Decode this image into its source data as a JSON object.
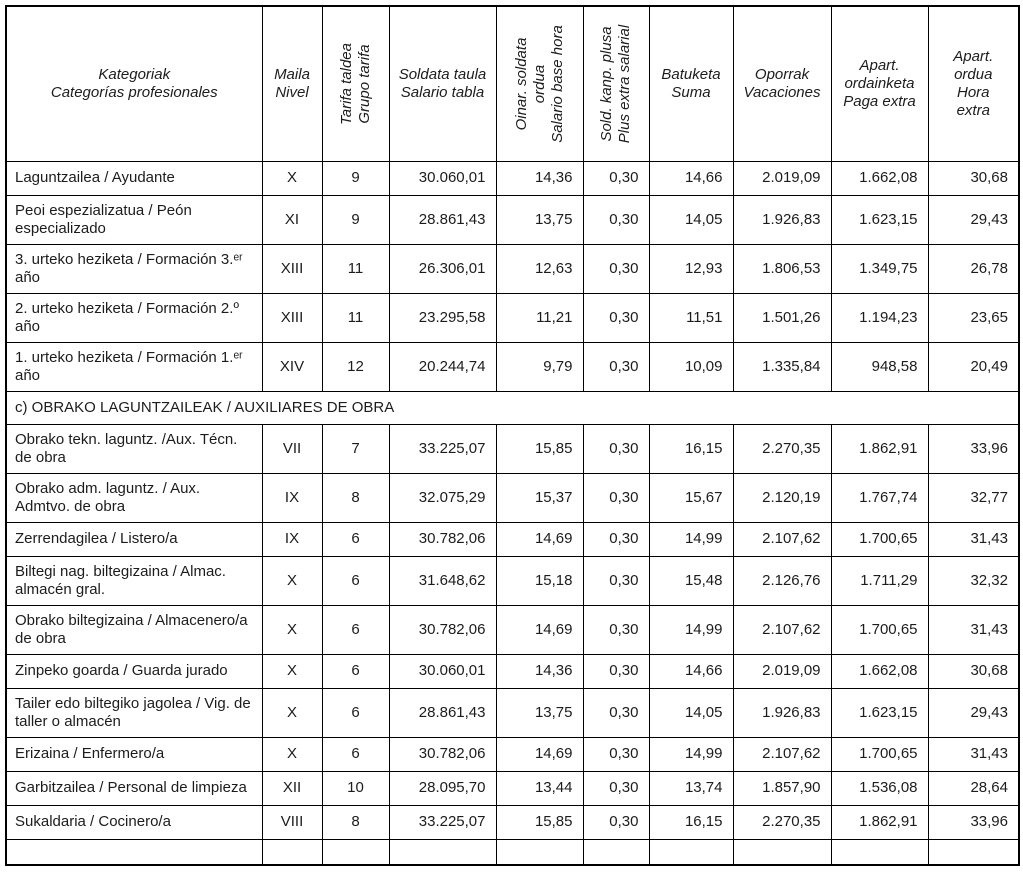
{
  "table": {
    "columns": [
      {
        "key": "category",
        "name": "col-header-category",
        "rotated": false,
        "lines": [
          "Kategoriak",
          "Categorías profesionales"
        ]
      },
      {
        "key": "level",
        "name": "col-header-level",
        "rotated": false,
        "lines": [
          "Maila",
          "Nivel"
        ]
      },
      {
        "key": "tariff_group",
        "name": "col-header-tariff-group",
        "rotated": true,
        "lines": [
          "Tarifa taldea",
          "Grupo tarifa"
        ]
      },
      {
        "key": "salary_table",
        "name": "col-header-salary-table",
        "rotated": false,
        "lines": [
          "Soldata taula",
          "Salario tabla"
        ]
      },
      {
        "key": "base_hour_salary",
        "name": "col-header-base-hour",
        "rotated": true,
        "lines": [
          "Oinar. soldata",
          "ordua",
          "Salario base hora"
        ]
      },
      {
        "key": "extra_salary_plus",
        "name": "col-header-salary-plus",
        "rotated": true,
        "lines": [
          "Sold. kanp. plusa",
          "Plus extra salarial"
        ]
      },
      {
        "key": "sum",
        "name": "col-header-sum",
        "rotated": false,
        "lines": [
          "Batuketa",
          "Suma"
        ]
      },
      {
        "key": "vacations",
        "name": "col-header-vacations",
        "rotated": false,
        "lines": [
          "Oporrak",
          "Vacaciones"
        ]
      },
      {
        "key": "extra_payment",
        "name": "col-header-extra-pay",
        "rotated": false,
        "lines": [
          "Apart.",
          "ordainketa",
          "Paga extra"
        ]
      },
      {
        "key": "extra_hour",
        "name": "col-header-extra-hour",
        "rotated": false,
        "lines": [
          "Apart.",
          "ordua",
          "Hora",
          "extra"
        ]
      }
    ],
    "rows": [
      {
        "type": "data",
        "cells": [
          "Laguntzailea / Ayudante",
          "X",
          "9",
          "30.060,01",
          "14,36",
          "0,30",
          "14,66",
          "2.019,09",
          "1.662,08",
          "30,68"
        ]
      },
      {
        "type": "data",
        "cells": [
          "Peoi espezializatua / Peón especializado",
          "XI",
          "9",
          "28.861,43",
          "13,75",
          "0,30",
          "14,05",
          "1.926,83",
          "1.623,15",
          "29,43"
        ]
      },
      {
        "type": "data",
        "cells": [
          "3. urteko heziketa / Formación 3.ᵉʳ año",
          "XIII",
          "11",
          "26.306,01",
          "12,63",
          "0,30",
          "12,93",
          "1.806,53",
          "1.349,75",
          "26,78"
        ]
      },
      {
        "type": "data",
        "cells": [
          "2. urteko heziketa / Formación 2.º año",
          "XIII",
          "11",
          "23.295,58",
          "11,21",
          "0,30",
          "11,51",
          "1.501,26",
          "1.194,23",
          "23,65"
        ]
      },
      {
        "type": "data",
        "cells": [
          "1. urteko heziketa / Formación 1.ᵉʳ año",
          "XIV",
          "12",
          "20.244,74",
          "9,79",
          "0,30",
          "10,09",
          "1.335,84",
          "948,58",
          "20,49"
        ]
      },
      {
        "type": "section",
        "label": "c) OBRAKO LAGUNTZAILEAK / AUXILIARES DE OBRA"
      },
      {
        "type": "data",
        "cells": [
          "Obrako tekn. laguntz. /Aux. Técn. de obra",
          "VII",
          "7",
          "33.225,07",
          "15,85",
          "0,30",
          "16,15",
          "2.270,35",
          "1.862,91",
          "33,96"
        ]
      },
      {
        "type": "data",
        "cells": [
          "Obrako adm. laguntz. / Aux. Admtvo. de obra",
          "IX",
          "8",
          "32.075,29",
          "15,37",
          "0,30",
          "15,67",
          "2.120,19",
          "1.767,74",
          "32,77"
        ]
      },
      {
        "type": "data",
        "cells": [
          "Zerrendagilea / Listero/a",
          "IX",
          "6",
          "30.782,06",
          "14,69",
          "0,30",
          "14,99",
          "2.107,62",
          "1.700,65",
          "31,43"
        ]
      },
      {
        "type": "data",
        "cells": [
          "Biltegi nag. biltegizaina / Almac. almacén gral.",
          "X",
          "6",
          "31.648,62",
          "15,18",
          "0,30",
          "15,48",
          "2.126,76",
          "1.711,29",
          "32,32"
        ]
      },
      {
        "type": "data",
        "cells": [
          "Obrako biltegizaina / Almacenero/a de obra",
          "X",
          "6",
          "30.782,06",
          "14,69",
          "0,30",
          "14,99",
          "2.107,62",
          "1.700,65",
          "31,43"
        ]
      },
      {
        "type": "data",
        "cells": [
          "Zinpeko goarda / Guarda jurado",
          "X",
          "6",
          "30.060,01",
          "14,36",
          "0,30",
          "14,66",
          "2.019,09",
          "1.662,08",
          "30,68"
        ]
      },
      {
        "type": "data",
        "cells": [
          "Tailer edo biltegiko jagolea / Vig. de taller o almacén",
          "X",
          "6",
          "28.861,43",
          "13,75",
          "0,30",
          "14,05",
          "1.926,83",
          "1.623,15",
          "29,43"
        ]
      },
      {
        "type": "data",
        "cells": [
          "Erizaina / Enfermero/a",
          "X",
          "6",
          "30.782,06",
          "14,69",
          "0,30",
          "14,99",
          "2.107,62",
          "1.700,65",
          "31,43"
        ]
      },
      {
        "type": "data",
        "cells": [
          "Garbitzailea / Personal de limpieza",
          "XII",
          "10",
          "28.095,70",
          "13,44",
          "0,30",
          "13,74",
          "1.857,90",
          "1.536,08",
          "28,64"
        ]
      },
      {
        "type": "data",
        "cells": [
          "Sukaldaria / Cocinero/a",
          "VIII",
          "8",
          "33.225,07",
          "15,85",
          "0,30",
          "16,15",
          "2.270,35",
          "1.862,91",
          "33,96"
        ]
      }
    ],
    "cell_names": [
      "cell-category",
      "cell-level",
      "cell-tariff-group",
      "cell-salary-table",
      "cell-base-hour-salary",
      "cell-salary-plus",
      "cell-sum",
      "cell-vacations",
      "cell-extra-pay",
      "cell-extra-hour"
    ],
    "colors": {
      "border": "#000000",
      "text": "#1c1c1c",
      "background": "#ffffff"
    }
  }
}
